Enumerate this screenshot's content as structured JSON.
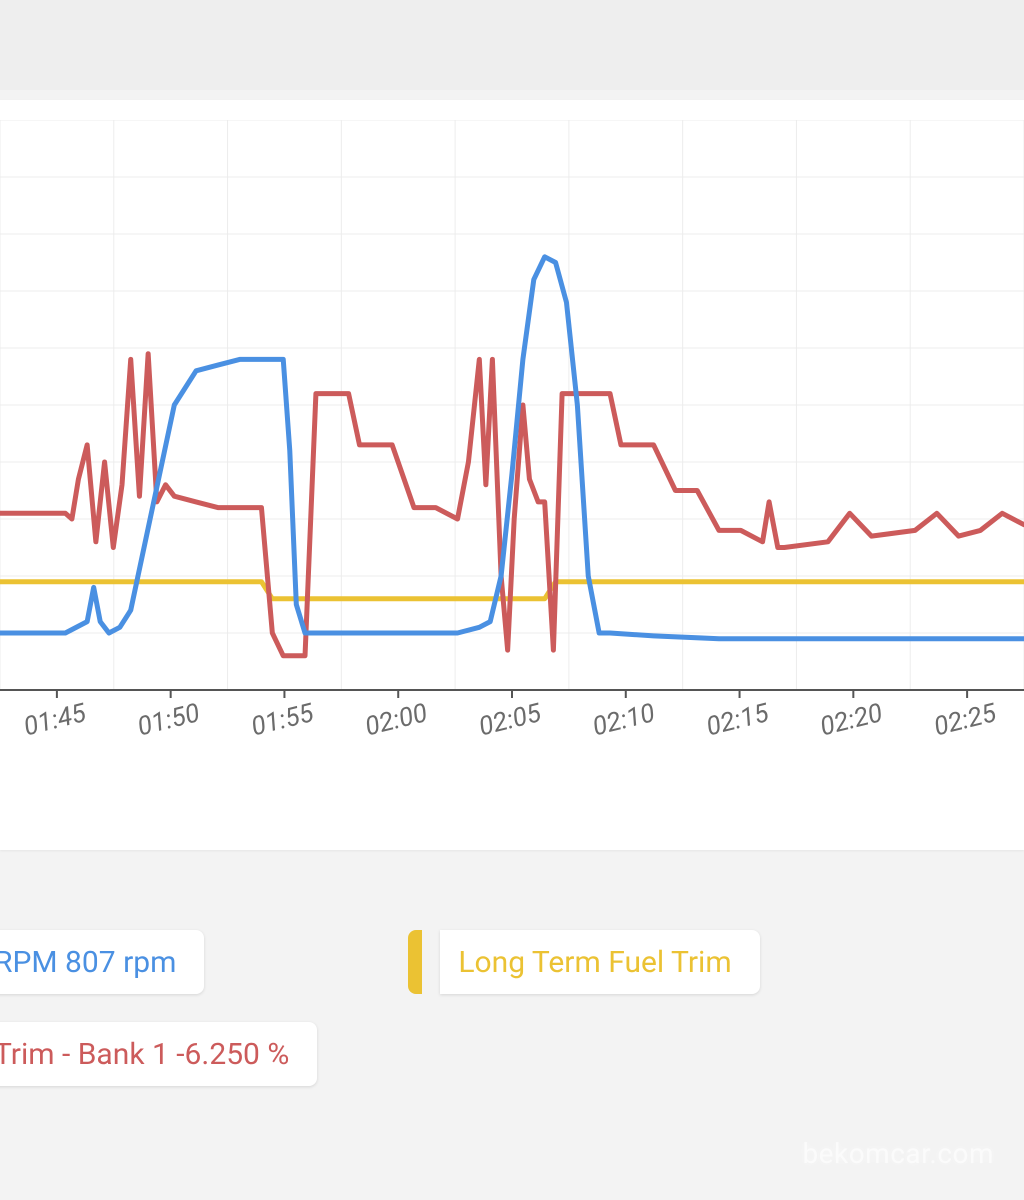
{
  "layout": {
    "page_bg": "#f3f3f3",
    "card_bg": "#ffffff",
    "grid_color": "#ececec",
    "axis_color": "#555555",
    "tick_label_color": "#6b6b6b",
    "tick_fontsize": 26,
    "line_width": 5
  },
  "chart": {
    "type": "line",
    "x_ticks": [
      "01:45",
      "01:50",
      "01:55",
      "02:00",
      "02:05",
      "02:10",
      "02:15",
      "02:20",
      "02:25"
    ],
    "x_tick_rotation_deg": -14,
    "x_range": [
      0,
      47
    ],
    "y_range": [
      0,
      10
    ],
    "y_gridlines": [
      0,
      1,
      2,
      3,
      4,
      5,
      6,
      7,
      8,
      9,
      10
    ],
    "x_grid_every": 5,
    "series": [
      {
        "name": "engine-rpm",
        "label": "RPM 807 rpm",
        "color": "#4a90e2",
        "data": [
          [
            0,
            1.0
          ],
          [
            2,
            1.0
          ],
          [
            3,
            1.0
          ],
          [
            4,
            1.2
          ],
          [
            4.3,
            1.8
          ],
          [
            4.6,
            1.2
          ],
          [
            5,
            1.0
          ],
          [
            5.5,
            1.1
          ],
          [
            6,
            1.4
          ],
          [
            7,
            3.2
          ],
          [
            8,
            5.0
          ],
          [
            9,
            5.6
          ],
          [
            10,
            5.7
          ],
          [
            11,
            5.8
          ],
          [
            12,
            5.8
          ],
          [
            13,
            5.8
          ],
          [
            13.3,
            4.2
          ],
          [
            13.6,
            1.5
          ],
          [
            14,
            1.0
          ],
          [
            16,
            1.0
          ],
          [
            18,
            1.0
          ],
          [
            20,
            1.0
          ],
          [
            21,
            1.0
          ],
          [
            22,
            1.1
          ],
          [
            22.5,
            1.2
          ],
          [
            23,
            2.0
          ],
          [
            23.5,
            3.8
          ],
          [
            24,
            5.8
          ],
          [
            24.5,
            7.2
          ],
          [
            25,
            7.6
          ],
          [
            25.5,
            7.5
          ],
          [
            26,
            6.8
          ],
          [
            26.5,
            5.0
          ],
          [
            27,
            2.0
          ],
          [
            27.5,
            1.0
          ],
          [
            28,
            1.0
          ],
          [
            30,
            0.95
          ],
          [
            33,
            0.9
          ],
          [
            36,
            0.9
          ],
          [
            40,
            0.9
          ],
          [
            44,
            0.9
          ],
          [
            47,
            0.9
          ]
        ]
      },
      {
        "name": "short-term-fuel-trim",
        "label": "Trim - Bank 1 -6.250 %",
        "color": "#cc5b5b",
        "data": [
          [
            0,
            3.1
          ],
          [
            2,
            3.1
          ],
          [
            3,
            3.1
          ],
          [
            3.3,
            3.0
          ],
          [
            3.6,
            3.7
          ],
          [
            4,
            4.3
          ],
          [
            4.4,
            2.6
          ],
          [
            4.8,
            4.0
          ],
          [
            5.2,
            2.5
          ],
          [
            5.6,
            3.6
          ],
          [
            6,
            5.8
          ],
          [
            6.4,
            3.4
          ],
          [
            6.8,
            5.9
          ],
          [
            7.2,
            3.3
          ],
          [
            7.6,
            3.6
          ],
          [
            8,
            3.4
          ],
          [
            9,
            3.3
          ],
          [
            10,
            3.2
          ],
          [
            11,
            3.2
          ],
          [
            12,
            3.2
          ],
          [
            12.5,
            1.0
          ],
          [
            13,
            0.6
          ],
          [
            13.5,
            0.6
          ],
          [
            14,
            0.6
          ],
          [
            14.5,
            5.2
          ],
          [
            15,
            5.2
          ],
          [
            16,
            5.2
          ],
          [
            16.5,
            4.3
          ],
          [
            17,
            4.3
          ],
          [
            18,
            4.3
          ],
          [
            19,
            3.2
          ],
          [
            20,
            3.2
          ],
          [
            21,
            3.0
          ],
          [
            21.5,
            4.0
          ],
          [
            22,
            5.8
          ],
          [
            22.3,
            3.6
          ],
          [
            22.6,
            5.8
          ],
          [
            23,
            2.0
          ],
          [
            23.3,
            0.7
          ],
          [
            23.6,
            3.0
          ],
          [
            24,
            5.0
          ],
          [
            24.3,
            3.7
          ],
          [
            24.7,
            3.3
          ],
          [
            25,
            3.3
          ],
          [
            25.4,
            0.7
          ],
          [
            25.8,
            5.2
          ],
          [
            26.2,
            5.2
          ],
          [
            27,
            5.2
          ],
          [
            28,
            5.2
          ],
          [
            28.5,
            4.3
          ],
          [
            29,
            4.3
          ],
          [
            30,
            4.3
          ],
          [
            31,
            3.5
          ],
          [
            32,
            3.5
          ],
          [
            33,
            2.8
          ],
          [
            34,
            2.8
          ],
          [
            35,
            2.6
          ],
          [
            35.3,
            3.3
          ],
          [
            35.7,
            2.5
          ],
          [
            36,
            2.5
          ],
          [
            38,
            2.6
          ],
          [
            39,
            3.1
          ],
          [
            40,
            2.7
          ],
          [
            42,
            2.8
          ],
          [
            43,
            3.1
          ],
          [
            44,
            2.7
          ],
          [
            45,
            2.8
          ],
          [
            46,
            3.1
          ],
          [
            47,
            2.9
          ]
        ]
      },
      {
        "name": "long-term-fuel-trim",
        "label": "Long Term Fuel Trim -",
        "color": "#ebc233",
        "data": [
          [
            0,
            1.9
          ],
          [
            6,
            1.9
          ],
          [
            12,
            1.9
          ],
          [
            12.5,
            1.6
          ],
          [
            13,
            1.6
          ],
          [
            18,
            1.6
          ],
          [
            22,
            1.6
          ],
          [
            24,
            1.6
          ],
          [
            25,
            1.6
          ],
          [
            25.5,
            1.9
          ],
          [
            26,
            1.9
          ],
          [
            27,
            1.9
          ],
          [
            28,
            1.9
          ],
          [
            47,
            1.9
          ]
        ]
      }
    ]
  },
  "legend": {
    "items": [
      {
        "text_partial": " RPM 807 rpm",
        "color": "#4a90e2",
        "text_color": "#4a90e2"
      },
      {
        "text_partial": "Long Term Fuel Trim ",
        "color": "#ebc233",
        "text_color": "#ebc233"
      },
      {
        "text_partial": " Trim - Bank 1 -6.250 %",
        "color": "#cc5b5b",
        "text_color": "#cc5b5b"
      }
    ],
    "fontsize": 30,
    "pill_bg": "#ffffff"
  },
  "watermark": "bekomcar.com"
}
